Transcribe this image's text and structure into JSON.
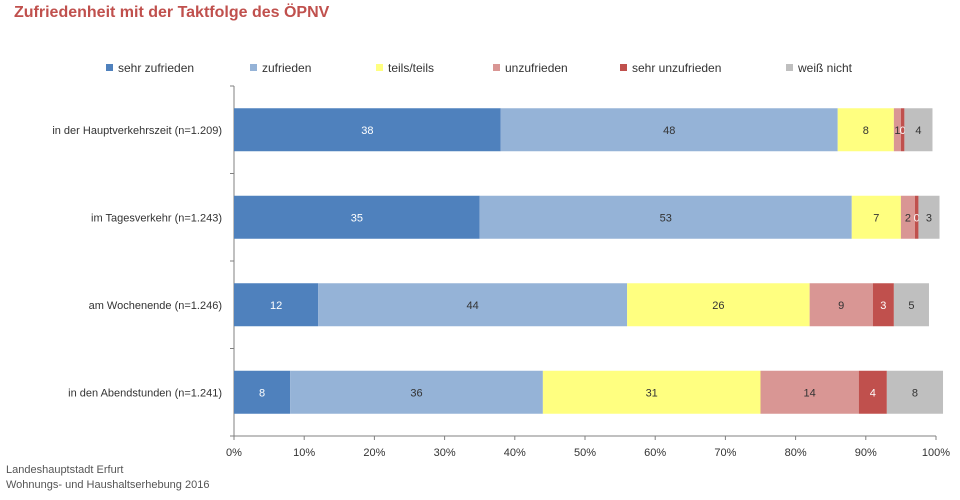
{
  "chart_data": {
    "type": "bar",
    "orientation": "horizontal",
    "stacked": true,
    "title": "Zufriedenheit mit der Taktfolge des ÖPNV",
    "categories": [
      "in der Hauptverkehrszeit (n=1.209)",
      "im Tagesverkehr (n=1.243)",
      "am Wochenende (n=1.246)",
      "in den Abendstunden (n=1.241)"
    ],
    "series": [
      {
        "name": "sehr zufrieden",
        "color": "#4f81bd",
        "label_color": "#ffffff",
        "values": [
          38,
          35,
          12,
          8
        ],
        "labels": [
          "38",
          "35",
          "12",
          "8"
        ]
      },
      {
        "name": "zufrieden",
        "color": "#95b3d7",
        "label_color": "#333333",
        "values": [
          48,
          53,
          44,
          36
        ],
        "labels": [
          "48",
          "53",
          "44",
          "36"
        ]
      },
      {
        "name": "teils/teils",
        "color": "#ffff80",
        "label_color": "#333333",
        "values": [
          8,
          7,
          26,
          31
        ],
        "labels": [
          "8",
          "7",
          "26",
          "31"
        ]
      },
      {
        "name": "unzufrieden",
        "color": "#d99694",
        "label_color": "#333333",
        "values": [
          1,
          2,
          9,
          14
        ],
        "labels": [
          "1",
          "2",
          "9",
          "14"
        ]
      },
      {
        "name": "sehr unzufrieden",
        "color": "#c0504d",
        "label_color": "#ffffff",
        "values": [
          0.5,
          0.5,
          3,
          4
        ],
        "labels": [
          "0",
          "0",
          "3",
          "4"
        ]
      },
      {
        "name": "weiß nicht",
        "color": "#bfbfbf",
        "label_color": "#333333",
        "values": [
          4,
          3,
          5,
          8
        ],
        "labels": [
          "4",
          "3",
          "5",
          "8"
        ]
      }
    ],
    "xlim": [
      0,
      100
    ],
    "xticks": [
      "0%",
      "10%",
      "20%",
      "30%",
      "40%",
      "50%",
      "60%",
      "70%",
      "80%",
      "90%",
      "100%"
    ],
    "legend_position": "top",
    "grid": false
  },
  "source": {
    "line1": "Landeshauptstadt Erfurt",
    "line2": "Wohnungs- und Haushaltserhebung 2016"
  }
}
